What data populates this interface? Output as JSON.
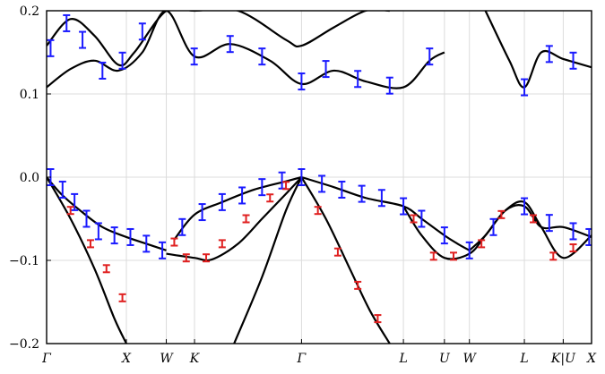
{
  "chart_data": {
    "type": "line",
    "title": "",
    "xlabel": "",
    "ylabel": "",
    "ylim": [
      -0.2,
      0.2
    ],
    "grid": true,
    "legend": "none",
    "x_ticks": [
      {
        "label": "Γ",
        "x": 0.0
      },
      {
        "label": "X",
        "x": 1.0
      },
      {
        "label": "W",
        "x": 1.5
      },
      {
        "label": "K",
        "x": 1.854
      },
      {
        "label": "Γ",
        "x": 3.195
      },
      {
        "label": "L",
        "x": 4.472
      },
      {
        "label": "U",
        "x": 4.986
      },
      {
        "label": "W",
        "x": 5.299
      },
      {
        "label": "L",
        "x": 5.988
      },
      {
        "label": "K|U",
        "x": 6.475
      },
      {
        "label": "X",
        "x": 6.83
      }
    ],
    "y_ticks": [
      -0.2,
      -0.1,
      0.0,
      0.1,
      0.2
    ],
    "y_tick_labels": [
      "−0.2",
      "−0.1",
      "0.0",
      "0.1",
      "0.2"
    ],
    "colors": {
      "curve": "#000000",
      "blue_points": "#1a1aff",
      "red_points": "#e02020",
      "grid": "#dcdcdc"
    },
    "series": [
      {
        "style": "curve",
        "x": [
          0,
          0.18,
          0.42,
          0.7,
          1.0,
          1.25,
          1.5
        ],
        "y": [
          0.0,
          -0.02,
          -0.04,
          -0.06,
          -0.072,
          -0.08,
          -0.088
        ]
      },
      {
        "style": "curve",
        "x": [
          1.6,
          1.854,
          2.2,
          2.6,
          3.0,
          3.195
        ],
        "y": [
          -0.075,
          -0.045,
          -0.03,
          -0.015,
          -0.005,
          0.0
        ]
      },
      {
        "style": "curve",
        "x": [
          1.5,
          1.854,
          2.07,
          2.4,
          2.7,
          3.0,
          3.195
        ],
        "y": [
          -0.092,
          -0.097,
          -0.099,
          -0.08,
          -0.05,
          -0.02,
          0.0
        ]
      },
      {
        "style": "curve",
        "x": [
          0,
          0.3,
          0.6,
          0.85,
          1.0
        ],
        "y": [
          0.0,
          -0.05,
          -0.11,
          -0.17,
          -0.2
        ]
      },
      {
        "style": "curve",
        "x": [
          2.35,
          2.7,
          3.0,
          3.195
        ],
        "y": [
          -0.2,
          -0.12,
          -0.04,
          0.0
        ]
      },
      {
        "style": "curve",
        "x": [
          3.195,
          3.5,
          3.8,
          4.05,
          4.3
        ],
        "y": [
          0.0,
          -0.05,
          -0.11,
          -0.16,
          -0.2
        ]
      },
      {
        "style": "curve",
        "x": [
          3.195,
          3.6,
          4.0,
          4.472,
          4.7,
          4.986,
          5.15,
          5.299
        ],
        "y": [
          0.0,
          -0.012,
          -0.025,
          -0.035,
          -0.05,
          -0.07,
          -0.08,
          -0.088
        ]
      },
      {
        "style": "curve",
        "x": [
          4.472,
          4.7,
          4.986,
          5.299,
          5.5,
          5.75,
          5.988,
          6.2,
          6.475,
          6.83
        ],
        "y": [
          -0.035,
          -0.07,
          -0.097,
          -0.092,
          -0.07,
          -0.04,
          -0.03,
          -0.06,
          -0.097,
          -0.07
        ]
      },
      {
        "style": "curve",
        "x": [
          5.299,
          5.5,
          5.75,
          5.988,
          6.2,
          6.475,
          6.83
        ],
        "y": [
          -0.088,
          -0.07,
          -0.04,
          -0.035,
          -0.06,
          -0.06,
          -0.072
        ]
      },
      {
        "style": "curve",
        "x": [
          0,
          0.3,
          0.6,
          0.9,
          1.2,
          1.5,
          1.854,
          2.3,
          2.8,
          3.195,
          3.6,
          4.0,
          4.472,
          4.8,
          4.986
        ],
        "y": [
          0.108,
          0.13,
          0.14,
          0.128,
          0.15,
          0.2,
          0.145,
          0.16,
          0.14,
          0.112,
          0.128,
          0.115,
          0.108,
          0.14,
          0.15
        ]
      },
      {
        "style": "curve",
        "x": [
          0,
          0.3,
          0.6,
          0.9,
          1.1,
          1.5,
          1.854,
          2.4,
          3.0,
          3.195,
          3.6,
          4.0,
          4.3
        ],
        "y": [
          0.158,
          0.19,
          0.17,
          0.135,
          0.15,
          0.2,
          0.2,
          0.2,
          0.165,
          0.158,
          0.18,
          0.2,
          0.2
        ]
      },
      {
        "style": "curve",
        "x": [
          5.5,
          5.8,
          5.988,
          6.2,
          6.475,
          6.83
        ],
        "y": [
          0.2,
          0.14,
          0.108,
          0.15,
          0.142,
          0.132
        ]
      }
    ],
    "points_blue": {
      "x": [
        0.05,
        0.2,
        0.35,
        0.5,
        0.65,
        0.85,
        1.05,
        1.25,
        1.45,
        1.7,
        1.95,
        2.2,
        2.45,
        2.7,
        2.95,
        3.195,
        3.45,
        3.7,
        3.95,
        4.2,
        4.472,
        4.7,
        4.986,
        5.299,
        5.6,
        5.988,
        6.3,
        6.6,
        6.8,
        0.05,
        0.25,
        0.45,
        0.7,
        0.95,
        1.2,
        1.85,
        2.3,
        2.7,
        3.195,
        3.5,
        3.9,
        4.3,
        4.8,
        5.988,
        6.3,
        6.6
      ],
      "y": [
        0.0,
        -0.015,
        -0.03,
        -0.05,
        -0.065,
        -0.07,
        -0.072,
        -0.08,
        -0.088,
        -0.06,
        -0.042,
        -0.03,
        -0.022,
        -0.012,
        -0.004,
        0.0,
        -0.008,
        -0.015,
        -0.02,
        -0.025,
        -0.035,
        -0.05,
        -0.07,
        -0.088,
        -0.06,
        -0.035,
        -0.055,
        -0.065,
        -0.072,
        0.155,
        0.185,
        0.165,
        0.128,
        0.14,
        0.175,
        0.145,
        0.16,
        0.145,
        0.115,
        0.13,
        0.118,
        0.11,
        0.145,
        0.108,
        0.148,
        0.14
      ]
    },
    "points_red": {
      "x": [
        0.3,
        0.55,
        0.75,
        0.95,
        1.6,
        1.75,
        2.0,
        2.2,
        2.5,
        2.8,
        3.0,
        3.4,
        3.65,
        3.9,
        4.15,
        4.6,
        4.85,
        5.1,
        5.45,
        5.7,
        6.1,
        6.35,
        6.6
      ],
      "y": [
        -0.04,
        -0.08,
        -0.11,
        -0.145,
        -0.078,
        -0.097,
        -0.097,
        -0.08,
        -0.05,
        -0.025,
        -0.01,
        -0.04,
        -0.09,
        -0.13,
        -0.17,
        -0.05,
        -0.095,
        -0.095,
        -0.08,
        -0.045,
        -0.05,
        -0.095,
        -0.085
      ]
    }
  }
}
